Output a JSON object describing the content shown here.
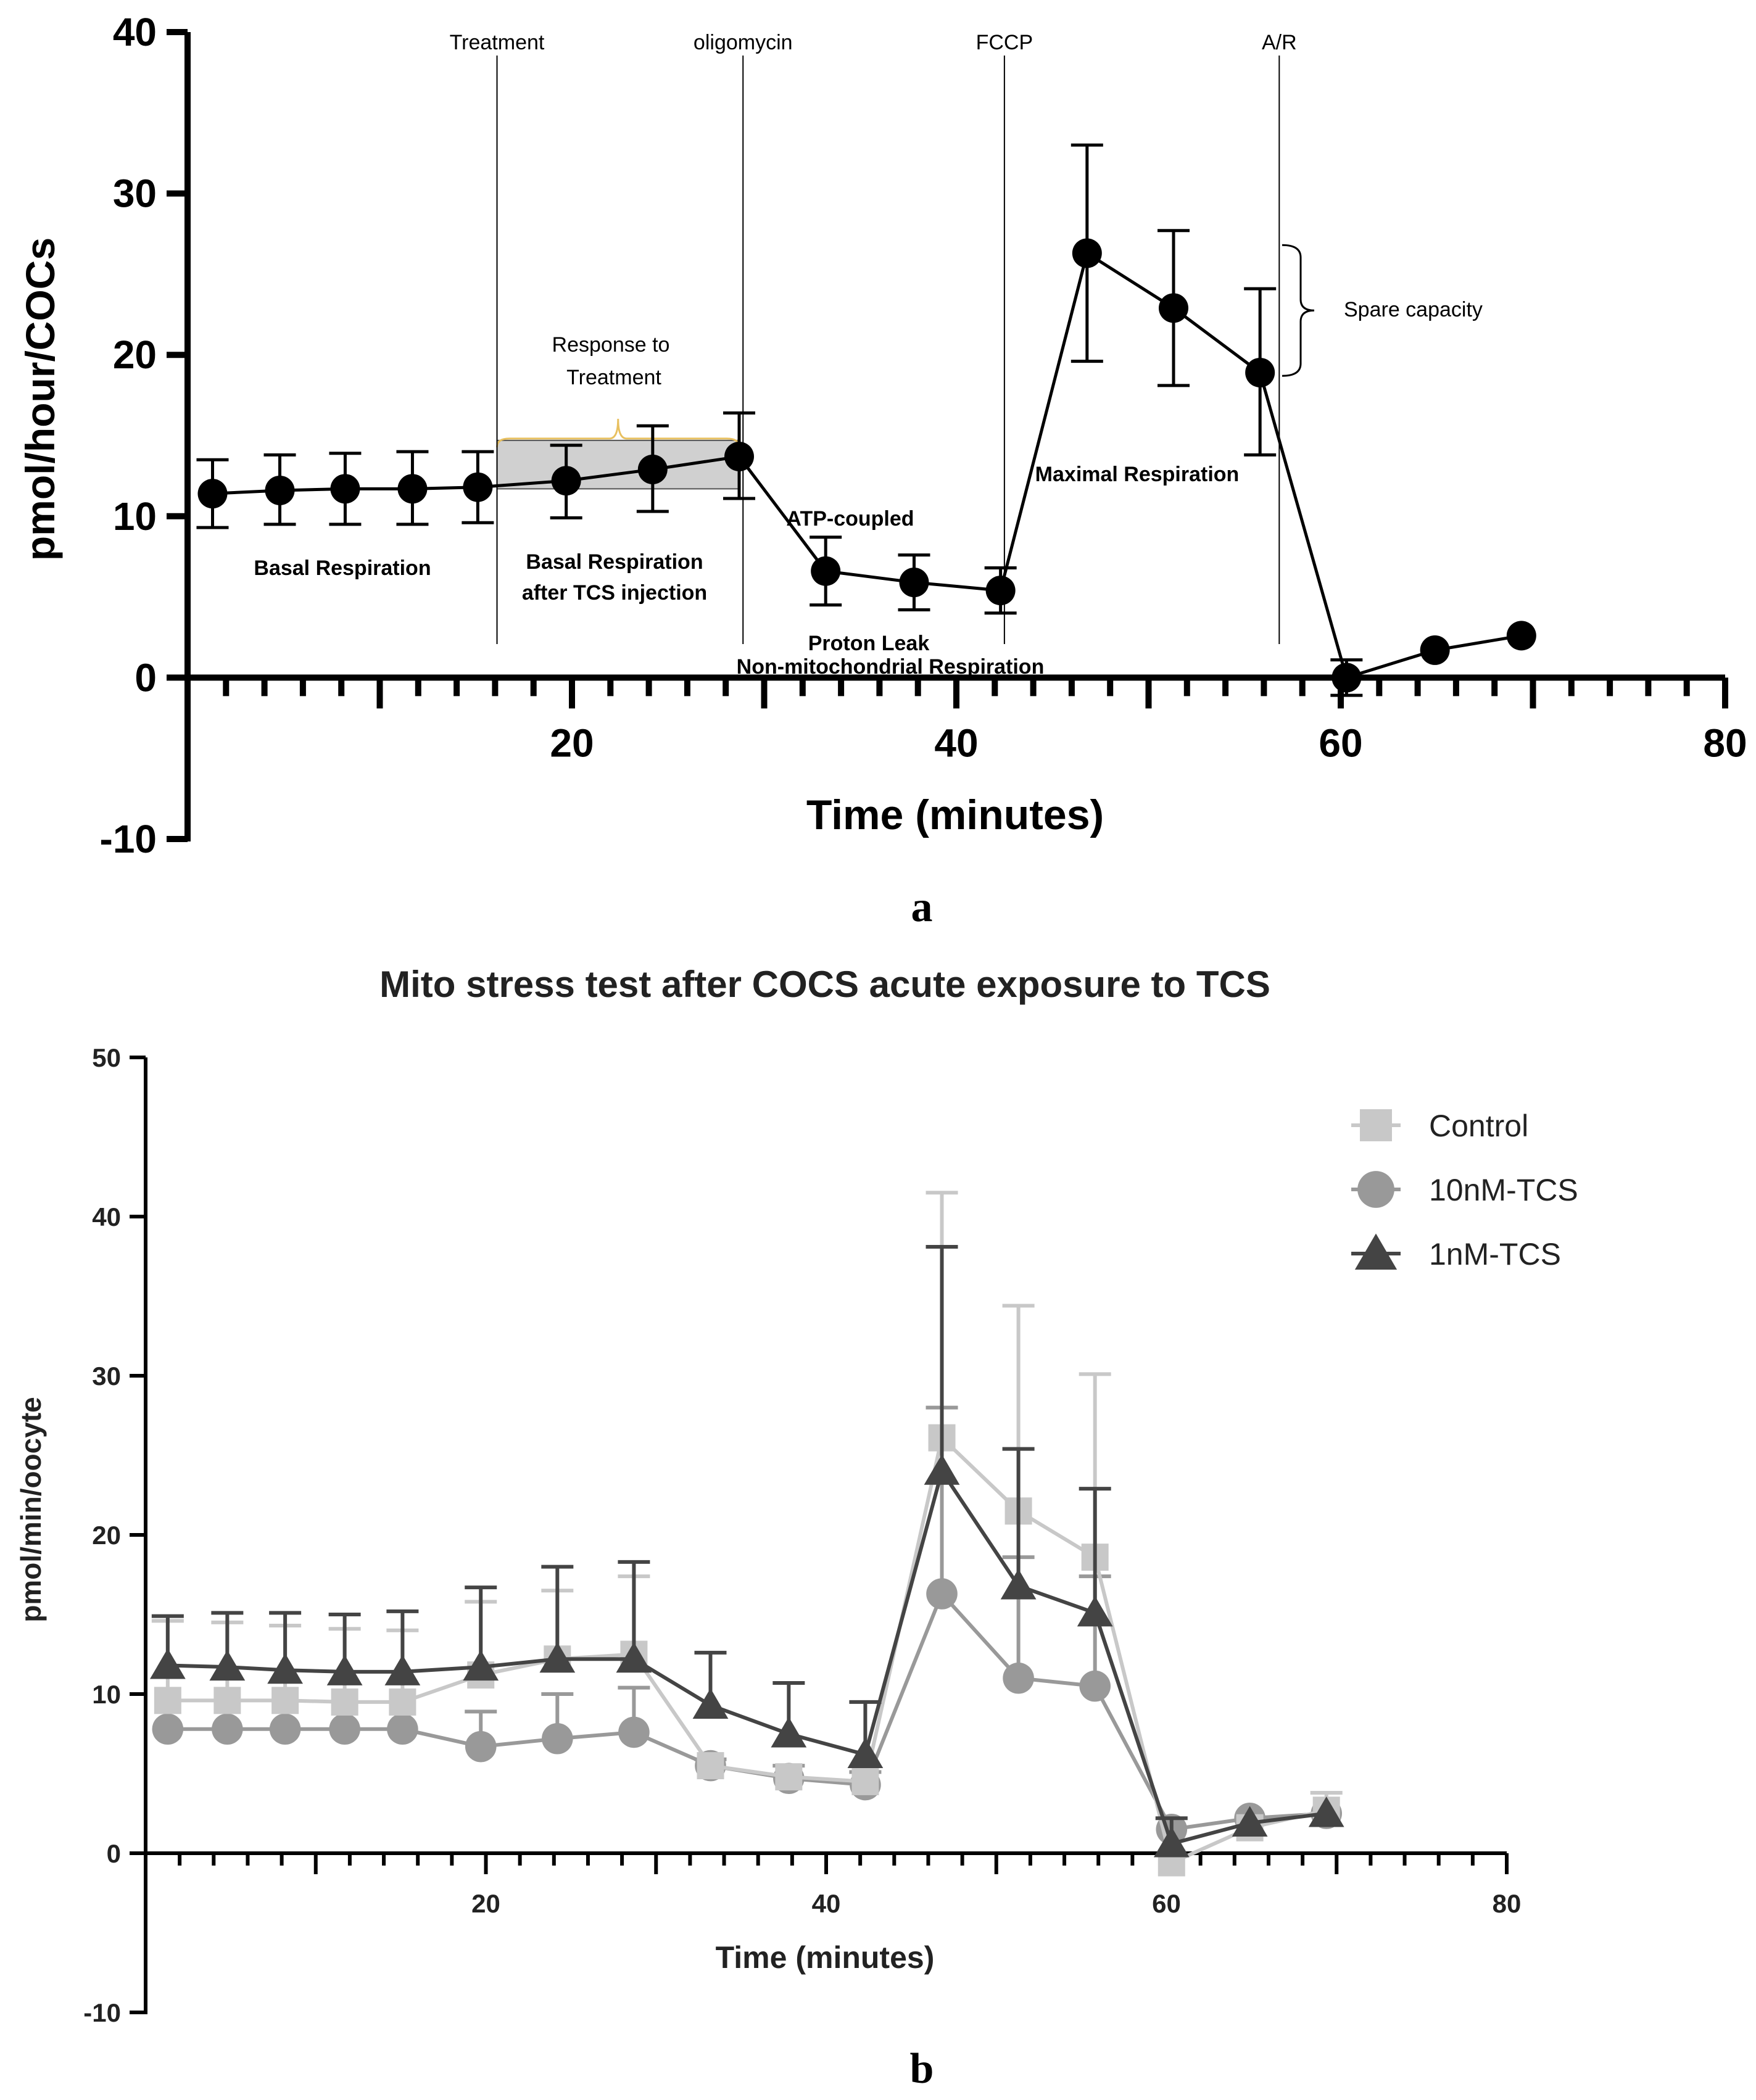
{
  "panel_labels": {
    "a": "a",
    "b": "b"
  },
  "chart_data": [
    {
      "type": "line",
      "ylabel": "pmol/hour/COCs",
      "xlabel": "Time (minutes)",
      "xlim": [
        0,
        80
      ],
      "ylim": [
        -10,
        40
      ],
      "x_ticks_labeled": [
        20,
        40,
        60,
        80
      ],
      "y_ticks": [
        -10,
        0,
        10,
        20,
        30,
        40
      ],
      "x": [
        1.3,
        4.8,
        8.2,
        11.7,
        15.1,
        19.7,
        24.2,
        28.7,
        33.2,
        37.8,
        42.3,
        46.8,
        51.3,
        55.8,
        60.3,
        64.9,
        69.4
      ],
      "series": [
        {
          "values": [
            11.4,
            11.6,
            11.7,
            11.7,
            11.8,
            12.2,
            12.9,
            13.7,
            6.6,
            5.9,
            5.4,
            26.3,
            22.9,
            18.9,
            0.0,
            1.7,
            2.6
          ],
          "err_upper": [
            13.5,
            13.8,
            13.9,
            14.0,
            14.0,
            14.4,
            15.6,
            16.4,
            8.7,
            7.6,
            6.8,
            33.0,
            27.7,
            24.1,
            1.1,
            null,
            null
          ],
          "err_lower": [
            9.3,
            9.5,
            9.5,
            9.5,
            9.6,
            9.9,
            10.3,
            11.1,
            4.5,
            4.2,
            4.0,
            19.6,
            18.1,
            13.8,
            -1.1,
            null,
            null
          ],
          "color": "#000000"
        }
      ],
      "injections": [
        {
          "label": "Treatment",
          "x": 16.1
        },
        {
          "label": "oligomycin",
          "x": 28.9
        },
        {
          "label": "FCCP",
          "x": 42.5
        },
        {
          "label": "A/R",
          "x": 56.8
        }
      ],
      "shaded_region": {
        "x_range": [
          16.1,
          28.7
        ],
        "y_range": [
          11.7,
          14.7
        ],
        "label": "Response to Treatment"
      },
      "annotations": {
        "response_line1": "Response to",
        "response_line2": "Treatment",
        "basal": "Basal Respiration",
        "basal_after_line1": "Basal Respiration",
        "basal_after_line2": "after TCS injection",
        "atp": "ATP-coupled",
        "proton": "Proton Leak",
        "nonmito": "Non-mitochondrial Respiration",
        "maximal": "Maximal Respiration",
        "spare": "Spare capacity"
      }
    },
    {
      "type": "line",
      "title": "Mito stress test after COCS acute exposure to TCS",
      "ylabel": "pmol/min/oocyte",
      "xlabel": "Time (minutes)",
      "xlim": [
        0,
        80
      ],
      "ylim": [
        -10,
        50
      ],
      "x_ticks_labeled": [
        20,
        40,
        60,
        80
      ],
      "y_ticks": [
        -10,
        0,
        10,
        20,
        30,
        40,
        50
      ],
      "legend_position": "top-right",
      "x": [
        1.3,
        4.8,
        8.2,
        11.7,
        15.1,
        19.7,
        24.2,
        28.7,
        33.2,
        37.8,
        42.3,
        46.8,
        51.3,
        55.8,
        60.3,
        64.9,
        69.4
      ],
      "series": [
        {
          "name": "Control",
          "marker": "square",
          "color": "#c8c8c8",
          "values": [
            9.6,
            9.6,
            9.6,
            9.5,
            9.5,
            11.2,
            12.2,
            12.5,
            5.5,
            4.8,
            4.5,
            26.1,
            21.5,
            18.6,
            -0.6,
            1.6,
            2.7
          ],
          "err_upper": [
            14.6,
            14.5,
            14.3,
            14.1,
            14.0,
            15.8,
            16.5,
            17.4,
            null,
            null,
            null,
            41.5,
            34.4,
            30.1,
            null,
            null,
            3.8
          ]
        },
        {
          "name": "10nM-TCS",
          "marker": "circle",
          "color": "#999999",
          "values": [
            7.8,
            7.8,
            7.8,
            7.8,
            7.8,
            6.7,
            7.2,
            7.6,
            5.5,
            4.7,
            4.3,
            16.3,
            11.0,
            10.5,
            1.5,
            2.2,
            2.5
          ],
          "err_upper": [
            null,
            null,
            null,
            null,
            null,
            8.9,
            10.0,
            10.4,
            5.9,
            5.5,
            5.1,
            28.0,
            18.6,
            17.4,
            null,
            null,
            null
          ]
        },
        {
          "name": "1nM-TCS",
          "marker": "triangle",
          "color": "#444444",
          "values": [
            11.8,
            11.7,
            11.5,
            11.4,
            11.4,
            11.7,
            12.2,
            12.2,
            9.3,
            7.5,
            6.2,
            24.0,
            16.8,
            15.1,
            0.6,
            1.9,
            2.5
          ],
          "err_upper": [
            14.9,
            15.1,
            15.1,
            15.0,
            15.2,
            16.7,
            18.0,
            18.3,
            12.6,
            10.7,
            9.5,
            38.1,
            25.4,
            22.9,
            2.2,
            null,
            null
          ]
        }
      ]
    }
  ]
}
